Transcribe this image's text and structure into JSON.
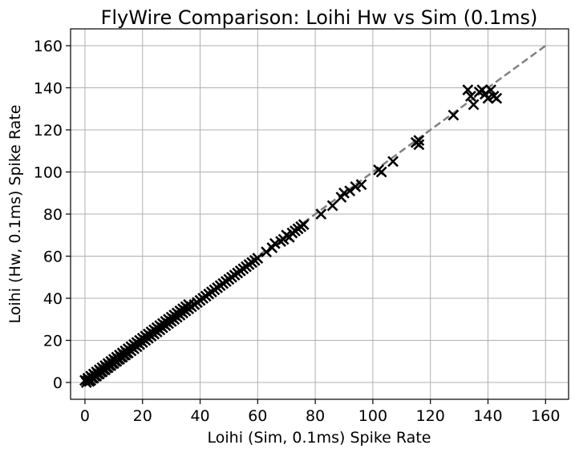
{
  "chart_data": {
    "type": "scatter",
    "title": "FlyWire Comparison: Loihi Hw vs Sim (0.1ms)",
    "xlabel": "Loihi (Sim, 0.1ms) Spike Rate",
    "ylabel": "Loihi (Hw, 0.1ms) Spike Rate",
    "xlim": [
      -5,
      168
    ],
    "ylim": [
      -8,
      168
    ],
    "xticks": [
      "0",
      "20",
      "40",
      "60",
      "80",
      "100",
      "120",
      "140",
      "160"
    ],
    "yticks": [
      "0",
      "20",
      "40",
      "60",
      "80",
      "100",
      "120",
      "140",
      "160"
    ],
    "grid": true,
    "marker": "x",
    "marker_color": "#000000",
    "reference_line": {
      "style": "dashed",
      "color": "#808080",
      "from": [
        0,
        0
      ],
      "to": [
        160,
        160
      ]
    },
    "points": [
      [
        0,
        1
      ],
      [
        0.5,
        0
      ],
      [
        1,
        1
      ],
      [
        1,
        2
      ],
      [
        1.5,
        0.5
      ],
      [
        2,
        1
      ],
      [
        2,
        3
      ],
      [
        2.5,
        2
      ],
      [
        3,
        2
      ],
      [
        3,
        4
      ],
      [
        3.5,
        3
      ],
      [
        4,
        3
      ],
      [
        4,
        5
      ],
      [
        4.5,
        4
      ],
      [
        5,
        4
      ],
      [
        5,
        6
      ],
      [
        5.5,
        5
      ],
      [
        6,
        5
      ],
      [
        6,
        7
      ],
      [
        6.5,
        6
      ],
      [
        7,
        6
      ],
      [
        7,
        8
      ],
      [
        7.5,
        7
      ],
      [
        8,
        7
      ],
      [
        8,
        9
      ],
      [
        8.5,
        8
      ],
      [
        9,
        8
      ],
      [
        9,
        10
      ],
      [
        9.5,
        9
      ],
      [
        10,
        9
      ],
      [
        10,
        11
      ],
      [
        10.5,
        10
      ],
      [
        11,
        10
      ],
      [
        11,
        12
      ],
      [
        11.5,
        11
      ],
      [
        12,
        11
      ],
      [
        12,
        13
      ],
      [
        12.5,
        12
      ],
      [
        13,
        12
      ],
      [
        13,
        14
      ],
      [
        13.5,
        13
      ],
      [
        14,
        13
      ],
      [
        14,
        15
      ],
      [
        14.5,
        14
      ],
      [
        15,
        14
      ],
      [
        15,
        16
      ],
      [
        16,
        15
      ],
      [
        16,
        17
      ],
      [
        17,
        16
      ],
      [
        17,
        18
      ],
      [
        18,
        17
      ],
      [
        18,
        19
      ],
      [
        19,
        18
      ],
      [
        19,
        20
      ],
      [
        20,
        19
      ],
      [
        20,
        21
      ],
      [
        21,
        20
      ],
      [
        21,
        22
      ],
      [
        22,
        21
      ],
      [
        22,
        23
      ],
      [
        23,
        22
      ],
      [
        23,
        24
      ],
      [
        24,
        23
      ],
      [
        24,
        25
      ],
      [
        25,
        24
      ],
      [
        25,
        26
      ],
      [
        26,
        25
      ],
      [
        26,
        27
      ],
      [
        27,
        26
      ],
      [
        27,
        28
      ],
      [
        28,
        27
      ],
      [
        28,
        29
      ],
      [
        29,
        28
      ],
      [
        29,
        30
      ],
      [
        30,
        29
      ],
      [
        30,
        31
      ],
      [
        31,
        30
      ],
      [
        31,
        32
      ],
      [
        32,
        31
      ],
      [
        32,
        33
      ],
      [
        33,
        32
      ],
      [
        33,
        34
      ],
      [
        34,
        33
      ],
      [
        34,
        35
      ],
      [
        35,
        34
      ],
      [
        35,
        36
      ],
      [
        36,
        35
      ],
      [
        36,
        37
      ],
      [
        37,
        36
      ],
      [
        38,
        37
      ],
      [
        39,
        38
      ],
      [
        40,
        39
      ],
      [
        41,
        40
      ],
      [
        42,
        41
      ],
      [
        43,
        42
      ],
      [
        44,
        43
      ],
      [
        45,
        44
      ],
      [
        46,
        45
      ],
      [
        47,
        46
      ],
      [
        48,
        47
      ],
      [
        49,
        48
      ],
      [
        50,
        49
      ],
      [
        51,
        50
      ],
      [
        52,
        51
      ],
      [
        53,
        52
      ],
      [
        54,
        53
      ],
      [
        55,
        54
      ],
      [
        56,
        55
      ],
      [
        57,
        56
      ],
      [
        58,
        57
      ],
      [
        59,
        58
      ],
      [
        60,
        59
      ],
      [
        63,
        62
      ],
      [
        65,
        64
      ],
      [
        66,
        66
      ],
      [
        68,
        67
      ],
      [
        69,
        68
      ],
      [
        70,
        70
      ],
      [
        71,
        69
      ],
      [
        72,
        71
      ],
      [
        73,
        72
      ],
      [
        74,
        73
      ],
      [
        75,
        74
      ],
      [
        76,
        75
      ],
      [
        82,
        80
      ],
      [
        86,
        84
      ],
      [
        89,
        88
      ],
      [
        90,
        90
      ],
      [
        92,
        91
      ],
      [
        94,
        93
      ],
      [
        96,
        94
      ],
      [
        102,
        101
      ],
      [
        103,
        100
      ],
      [
        107,
        105
      ],
      [
        115,
        114
      ],
      [
        116,
        115
      ],
      [
        116,
        113
      ],
      [
        128,
        127
      ],
      [
        133,
        139
      ],
      [
        134,
        136
      ],
      [
        135,
        132
      ],
      [
        137,
        138
      ],
      [
        138,
        139
      ],
      [
        139,
        137
      ],
      [
        140,
        135
      ],
      [
        141,
        139
      ],
      [
        142,
        136
      ],
      [
        143,
        135
      ]
    ]
  }
}
